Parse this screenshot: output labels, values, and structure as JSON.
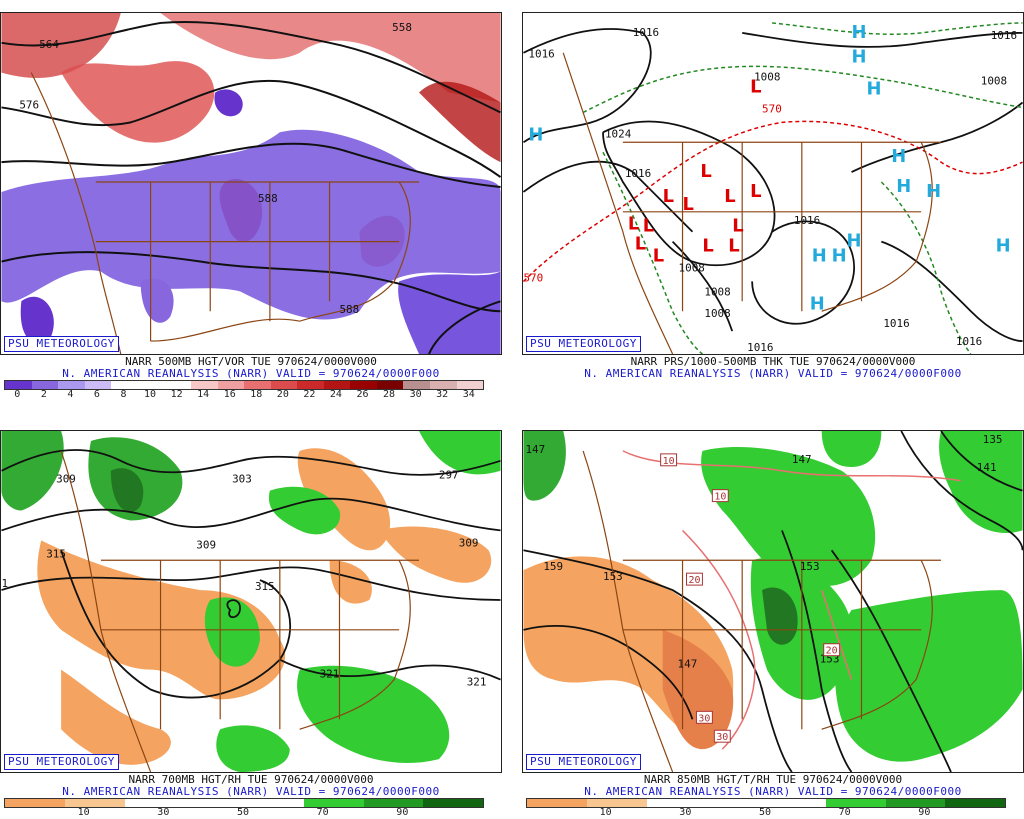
{
  "panels": [
    {
      "id": "p500",
      "credit": "PSU METEOROLOGY",
      "caption_line1": "NARR 500MB HGT/VOR TUE 970624/0000V000",
      "caption_line2": "N. AMERICAN REANALYSIS (NARR) VALID = 970624/0000F000",
      "colorbar": {
        "labels": [
          "0",
          "2",
          "4",
          "6",
          "8",
          "10",
          "12",
          "14",
          "16",
          "18",
          "20",
          "22",
          "24",
          "26",
          "28",
          "30",
          "32",
          "34"
        ],
        "colors": [
          "#6633cc",
          "#8866dd",
          "#aa99ee",
          "#ccbbf4",
          "#ffffff",
          "#ffffff",
          "#ffffff",
          "#f7c7c7",
          "#f0a0a0",
          "#e87070",
          "#dd4c4c",
          "#cc2a2a",
          "#b31515",
          "#990000",
          "#7a0000",
          "#b89090",
          "#d9b0b0",
          "#f0d0d0"
        ]
      },
      "contour_labels": [
        "564",
        "576",
        "558",
        "588",
        "588"
      ]
    },
    {
      "id": "pprs",
      "credit": "PSU METEOROLOGY",
      "caption_line1": "NARR PRS/1000-500MB THK TUE 970624/0000V000",
      "caption_line2": "N. AMERICAN REANALYSIS (NARR) VALID = 970624/0000F000",
      "isobar_labels": [
        "1016",
        "1016",
        "1024",
        "1016",
        "1008",
        "1016",
        "1008",
        "1008",
        "1016",
        "1016",
        "1016",
        "1008",
        "1016",
        "1008"
      ],
      "thickness_labels": [
        "570",
        "570"
      ],
      "high_symbol": "H",
      "low_symbol": "L"
    },
    {
      "id": "p700",
      "credit": "PSU METEOROLOGY",
      "caption_line1": "NARR 700MB HGT/RH TUE 970624/0000V000",
      "caption_line2": "N. AMERICAN REANALYSIS (NARR) VALID = 970624/0000F000",
      "colorbar": {
        "labels": [
          "10",
          "30",
          "50",
          "70",
          "90"
        ],
        "colors": [
          "#f4a460",
          "#f8c690",
          "#ffffff",
          "#ffffff",
          "#ffffff",
          "#33cc33",
          "#229922",
          "#116611"
        ]
      },
      "contour_labels": [
        "309",
        "303",
        "297",
        "315",
        "309",
        "315",
        "309",
        "321",
        "321",
        "1"
      ]
    },
    {
      "id": "p850",
      "credit": "PSU METEOROLOGY",
      "caption_line1": "NARR 850MB HGT/T/RH TUE 970624/0000V000",
      "caption_line2": "N. AMERICAN REANALYSIS (NARR) VALID = 970624/0000F000",
      "colorbar": {
        "labels": [
          "10",
          "30",
          "50",
          "70",
          "90"
        ],
        "colors": [
          "#f4a460",
          "#f8c690",
          "#ffffff",
          "#ffffff",
          "#ffffff",
          "#33cc33",
          "#229922",
          "#116611"
        ]
      },
      "contour_labels": [
        "147",
        "159",
        "153",
        "153",
        "147",
        "153",
        "141",
        "135",
        "147"
      ],
      "temp_labels": [
        "10",
        "10",
        "20",
        "20",
        "30",
        "30"
      ]
    }
  ]
}
